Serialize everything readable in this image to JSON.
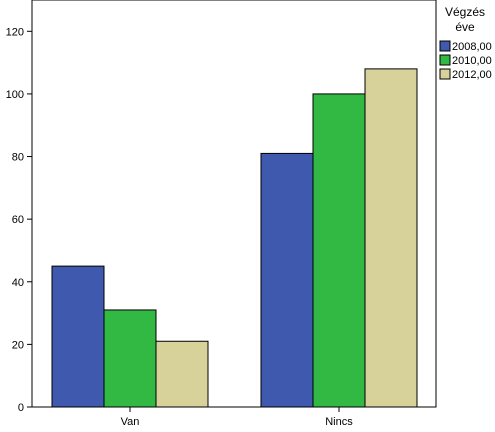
{
  "chart_data": {
    "type": "bar",
    "title": "",
    "xlabel": "",
    "ylabel": "",
    "categories": [
      "Van",
      "Nincs"
    ],
    "series": [
      {
        "name": "2008,00",
        "values": [
          45,
          81
        ],
        "color": "#3f59af"
      },
      {
        "name": "2010,00",
        "values": [
          31,
          100
        ],
        "color": "#31b944"
      },
      {
        "name": "2012,00",
        "values": [
          21,
          108
        ],
        "color": "#d7d19a"
      }
    ],
    "ylim": [
      0,
      130
    ],
    "yticks": [
      0,
      20,
      40,
      60,
      80,
      100,
      120
    ],
    "ytick_labels": [
      "0",
      "20",
      "40",
      "60",
      "80",
      "100",
      "120"
    ],
    "grid": false,
    "legend": {
      "title_lines": [
        "Végzés",
        "éve"
      ],
      "placement": "right"
    }
  }
}
